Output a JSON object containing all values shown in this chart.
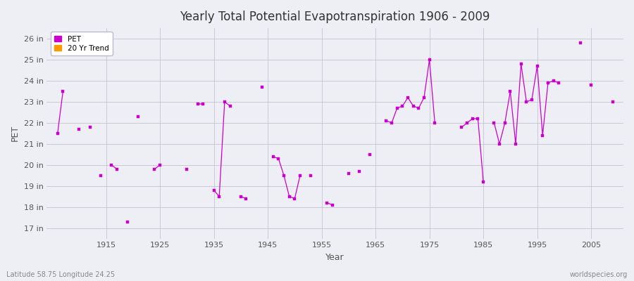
{
  "title": "Yearly Total Potential Evapotranspiration 1906 - 2009",
  "xlabel": "Year",
  "ylabel": "PET",
  "background_color": "#eeeef5",
  "plot_background_color": "#eeeef5",
  "line_color": "#cc00cc",
  "trend_color": "#ff9900",
  "ytick_labels": [
    "17 in",
    "18 in",
    "19 in",
    "20 in",
    "21 in",
    "22 in",
    "23 in",
    "24 in",
    "25 in",
    "26 in"
  ],
  "ytick_values": [
    17,
    18,
    19,
    20,
    21,
    22,
    23,
    24,
    25,
    26
  ],
  "ylim": [
    16.5,
    26.5
  ],
  "xlim": [
    1904,
    2011
  ],
  "xtick_values": [
    1915,
    1925,
    1935,
    1945,
    1955,
    1965,
    1975,
    1985,
    1995,
    2005
  ],
  "footer_left": "Latitude 58.75 Longitude 24.25",
  "footer_right": "worldspecies.org",
  "data_points": [
    [
      1906,
      21.5
    ],
    [
      1907,
      23.5
    ],
    [
      1910,
      21.7
    ],
    [
      1912,
      21.8
    ],
    [
      1914,
      19.5
    ],
    [
      1916,
      20.0
    ],
    [
      1917,
      19.8
    ],
    [
      1919,
      17.3
    ],
    [
      1921,
      22.3
    ],
    [
      1924,
      19.8
    ],
    [
      1925,
      20.0
    ],
    [
      1930,
      19.8
    ],
    [
      1932,
      22.9
    ],
    [
      1933,
      22.9
    ],
    [
      1935,
      18.8
    ],
    [
      1936,
      18.5
    ],
    [
      1937,
      23.0
    ],
    [
      1938,
      22.8
    ],
    [
      1940,
      18.5
    ],
    [
      1941,
      18.4
    ],
    [
      1944,
      23.7
    ],
    [
      1946,
      20.4
    ],
    [
      1947,
      20.3
    ],
    [
      1948,
      19.5
    ],
    [
      1949,
      18.5
    ],
    [
      1950,
      18.4
    ],
    [
      1951,
      19.5
    ],
    [
      1953,
      19.5
    ],
    [
      1956,
      18.2
    ],
    [
      1957,
      18.1
    ],
    [
      1960,
      19.6
    ],
    [
      1962,
      19.7
    ],
    [
      1964,
      20.5
    ],
    [
      1967,
      22.1
    ],
    [
      1968,
      22.0
    ],
    [
      1969,
      22.7
    ],
    [
      1970,
      22.8
    ],
    [
      1971,
      23.2
    ],
    [
      1972,
      22.8
    ],
    [
      1973,
      22.7
    ],
    [
      1974,
      23.2
    ],
    [
      1975,
      25.0
    ],
    [
      1976,
      22.0
    ],
    [
      1981,
      21.8
    ],
    [
      1982,
      22.0
    ],
    [
      1983,
      22.2
    ],
    [
      1984,
      22.2
    ],
    [
      1985,
      19.2
    ],
    [
      1987,
      22.0
    ],
    [
      1988,
      21.0
    ],
    [
      1989,
      22.0
    ],
    [
      1990,
      23.5
    ],
    [
      1991,
      21.0
    ],
    [
      1992,
      24.8
    ],
    [
      1993,
      23.0
    ],
    [
      1994,
      23.1
    ],
    [
      1995,
      24.7
    ],
    [
      1996,
      21.4
    ],
    [
      1997,
      23.9
    ],
    [
      1998,
      24.0
    ],
    [
      1999,
      23.9
    ],
    [
      2003,
      25.8
    ],
    [
      2005,
      23.8
    ],
    [
      2009,
      23.0
    ]
  ]
}
